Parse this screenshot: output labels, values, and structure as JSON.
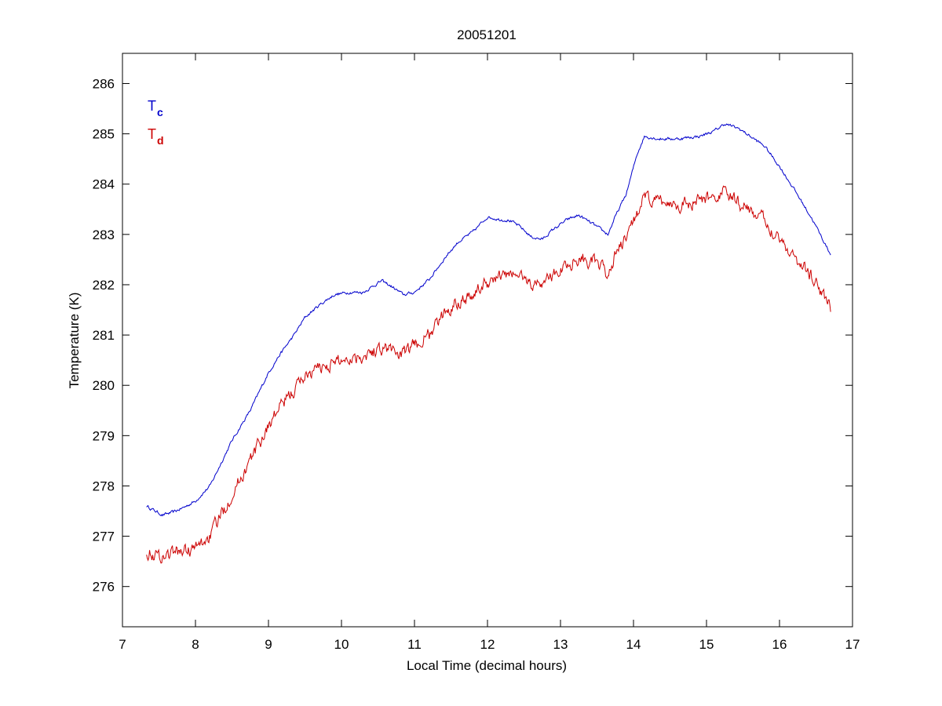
{
  "chart_data": {
    "type": "line",
    "title": "20051201",
    "xlabel": "Local Time (decimal hours)",
    "ylabel": "Temperature (K)",
    "xlim": [
      7,
      17
    ],
    "ylim": [
      275.2,
      286.6
    ],
    "xticks": [
      7,
      8,
      9,
      10,
      11,
      12,
      13,
      14,
      15,
      16,
      17
    ],
    "yticks": [
      276,
      277,
      278,
      279,
      280,
      281,
      282,
      283,
      284,
      285,
      286
    ],
    "grid": false,
    "legend_position": "top-left",
    "series": [
      {
        "name": "Tc",
        "label_main": "T",
        "label_sub": "c",
        "color": "#0000cc",
        "noise": 0.025,
        "x": [
          7.33,
          7.45,
          7.55,
          7.7,
          7.85,
          8.0,
          8.2,
          8.5,
          8.75,
          9.0,
          9.15,
          9.35,
          9.5,
          9.7,
          9.9,
          10.1,
          10.3,
          10.55,
          10.7,
          10.85,
          11.0,
          11.2,
          11.45,
          11.6,
          11.8,
          12.0,
          12.15,
          12.3,
          12.45,
          12.6,
          12.75,
          12.9,
          13.1,
          13.25,
          13.45,
          13.65,
          13.75,
          13.9,
          14.05,
          14.15,
          14.35,
          14.6,
          14.9,
          15.1,
          15.25,
          15.45,
          15.6,
          15.8,
          16.0,
          16.2,
          16.45,
          16.7
        ],
        "y": [
          277.6,
          277.5,
          277.42,
          277.48,
          277.58,
          277.7,
          278.0,
          278.9,
          279.5,
          280.25,
          280.6,
          281.0,
          281.35,
          281.6,
          281.8,
          281.85,
          281.85,
          282.08,
          281.95,
          281.8,
          281.85,
          282.1,
          282.6,
          282.85,
          283.05,
          283.35,
          283.3,
          283.28,
          283.15,
          282.95,
          282.9,
          283.1,
          283.3,
          283.38,
          283.2,
          283.0,
          283.35,
          283.8,
          284.6,
          284.95,
          284.9,
          284.9,
          284.95,
          285.05,
          285.2,
          285.1,
          284.95,
          284.75,
          284.35,
          283.9,
          283.3,
          282.6
        ]
      },
      {
        "name": "Td",
        "label_main": "T",
        "label_sub": "d",
        "color": "#cc0000",
        "noise": 0.11,
        "x": [
          7.33,
          7.45,
          7.55,
          7.7,
          7.85,
          8.0,
          8.2,
          8.5,
          8.75,
          9.0,
          9.15,
          9.35,
          9.5,
          9.7,
          9.9,
          10.1,
          10.3,
          10.55,
          10.7,
          10.85,
          11.0,
          11.2,
          11.45,
          11.6,
          11.8,
          12.0,
          12.15,
          12.3,
          12.45,
          12.6,
          12.75,
          12.9,
          13.1,
          13.25,
          13.45,
          13.65,
          13.75,
          13.9,
          14.05,
          14.15,
          14.35,
          14.6,
          14.9,
          15.1,
          15.25,
          15.45,
          15.6,
          15.8,
          16.0,
          16.2,
          16.45,
          16.7
        ],
        "y": [
          276.72,
          276.62,
          276.6,
          276.68,
          276.72,
          276.75,
          277.0,
          277.85,
          278.5,
          279.2,
          279.55,
          279.9,
          280.2,
          280.35,
          280.45,
          280.55,
          280.6,
          280.75,
          280.7,
          280.6,
          280.8,
          281.0,
          281.5,
          281.7,
          281.8,
          282.05,
          282.15,
          282.2,
          282.2,
          282.0,
          282.05,
          282.2,
          282.4,
          282.55,
          282.45,
          282.2,
          282.6,
          282.9,
          283.45,
          283.7,
          283.65,
          283.6,
          283.65,
          283.75,
          283.85,
          283.6,
          283.5,
          283.25,
          282.95,
          282.55,
          282.15,
          281.55
        ]
      }
    ]
  }
}
